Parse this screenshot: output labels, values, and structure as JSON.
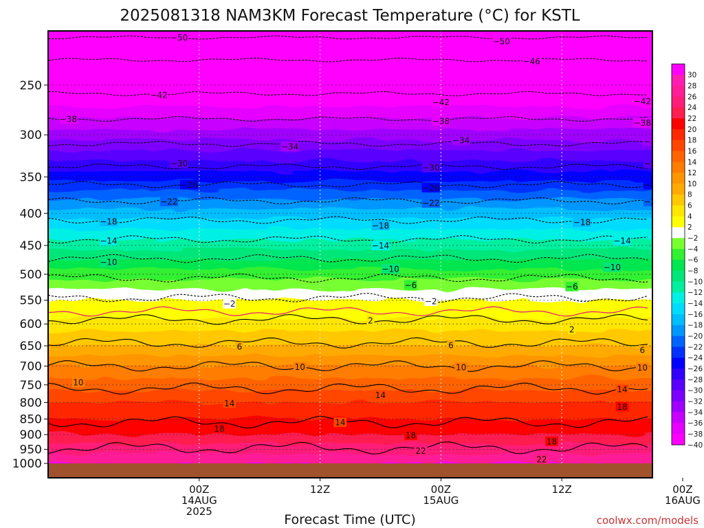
{
  "chart_data": {
    "type": "heatmap",
    "title": "2025081318 NAM3KM Forecast Temperature (°C) for KSTL",
    "xlabel": "Forecast Time (UTC)",
    "ylabel": "",
    "y_axis": {
      "scale": "log-pressure",
      "inverted": true,
      "range_hpa": [
        1000,
        205
      ],
      "ticks": [
        250,
        300,
        350,
        400,
        450,
        500,
        550,
        600,
        650,
        700,
        750,
        800,
        850,
        900,
        950,
        1000
      ]
    },
    "x_axis": {
      "range_hours": [
        -9,
        51
      ],
      "ticks": [
        {
          "hour": 6,
          "lines": [
            "00Z",
            "14AUG",
            "2025"
          ]
        },
        {
          "hour": 18,
          "lines": [
            "12Z"
          ]
        },
        {
          "hour": 30,
          "lines": [
            "00Z",
            "15AUG"
          ]
        },
        {
          "hour": 42,
          "lines": [
            "12Z"
          ]
        },
        {
          "hour": 54,
          "lines": [
            "00Z",
            "16AUG"
          ]
        }
      ]
    },
    "grid": "dotted",
    "colorbar": {
      "placement": "right",
      "levels": [
        -40,
        -38,
        -36,
        -34,
        -32,
        -30,
        -28,
        -26,
        -24,
        -22,
        -20,
        -18,
        -16,
        -14,
        -12,
        -10,
        -8,
        -6,
        -4,
        -2,
        2,
        4,
        6,
        8,
        10,
        12,
        14,
        16,
        18,
        20,
        22,
        24,
        26,
        28,
        30
      ],
      "colors": [
        "#ff00ff",
        "#e600ff",
        "#c800ff",
        "#a000ff",
        "#7d00ff",
        "#5a00ff",
        "#3200ff",
        "#0000ff",
        "#0032ff",
        "#0064ff",
        "#0096ff",
        "#00beff",
        "#00dcff",
        "#00f0e6",
        "#00f0a0",
        "#00e678",
        "#00e650",
        "#32f032",
        "#78ff32",
        "#ffffff",
        "#ffff00",
        "#ffe600",
        "#ffc800",
        "#ffaa00",
        "#ff9600",
        "#ff7d00",
        "#ff6400",
        "#ff4600",
        "#ff2800",
        "#ff0000",
        "#ff1e50",
        "#ff1e78",
        "#ff1e96",
        "#ff1eb4",
        "#ff00ff"
      ]
    },
    "temperature_profile": [
      {
        "p": 205,
        "t": -54
      },
      {
        "p": 250,
        "t": -44
      },
      {
        "p": 300,
        "t": -35
      },
      {
        "p": 350,
        "t": -27
      },
      {
        "p": 400,
        "t": -19
      },
      {
        "p": 450,
        "t": -13
      },
      {
        "p": 500,
        "t": -7
      },
      {
        "p": 550,
        "t": -2
      },
      {
        "p": 570,
        "t": 0
      },
      {
        "p": 600,
        "t": 3
      },
      {
        "p": 650,
        "t": 6
      },
      {
        "p": 700,
        "t": 10
      },
      {
        "p": 750,
        "t": 13
      },
      {
        "p": 800,
        "t": 16
      },
      {
        "p": 850,
        "t": 18
      },
      {
        "p": 900,
        "t": 20
      },
      {
        "p": 950,
        "t": 23
      },
      {
        "p": 1000,
        "t": 26
      }
    ],
    "contours": [
      {
        "value": -50,
        "pressure": 210,
        "style": "dashed"
      },
      {
        "value": -46,
        "pressure": 228,
        "style": "dashed"
      },
      {
        "value": -42,
        "pressure": 258,
        "style": "dashed"
      },
      {
        "value": -38,
        "pressure": 283,
        "style": "dashed"
      },
      {
        "value": -34,
        "pressure": 310,
        "style": "dashed"
      },
      {
        "value": -30,
        "pressure": 337,
        "style": "dashed"
      },
      {
        "value": -26,
        "pressure": 360,
        "style": "dashed"
      },
      {
        "value": -22,
        "pressure": 382,
        "style": "dashed"
      },
      {
        "value": -18,
        "pressure": 410,
        "style": "dashed"
      },
      {
        "value": -14,
        "pressure": 440,
        "style": "dashed"
      },
      {
        "value": -10,
        "pressure": 472,
        "style": "dashed"
      },
      {
        "value": -6,
        "pressure": 507,
        "style": "dashed"
      },
      {
        "value": -2,
        "pressure": 545,
        "style": "dashed"
      },
      {
        "value": 0,
        "pressure": 573,
        "style": "magenta"
      },
      {
        "value": 2,
        "pressure": 590,
        "style": "solid"
      },
      {
        "value": 6,
        "pressure": 643,
        "style": "solid"
      },
      {
        "value": 10,
        "pressure": 700,
        "style": "solid"
      },
      {
        "value": 14,
        "pressure": 760,
        "style": "solid"
      },
      {
        "value": 18,
        "pressure": 860,
        "style": "solid"
      },
      {
        "value": 22,
        "pressure": 945,
        "style": "solid"
      }
    ],
    "contour_labels": [
      {
        "text": "-50",
        "hour": 4,
        "p": 210
      },
      {
        "text": "-50",
        "hour": 36,
        "p": 213
      },
      {
        "text": "-46",
        "hour": 39,
        "p": 229
      },
      {
        "text": "-42",
        "hour": 2,
        "p": 259
      },
      {
        "text": "-42",
        "hour": 30,
        "p": 266
      },
      {
        "text": "-42",
        "hour": 50,
        "p": 265
      },
      {
        "text": "-38",
        "hour": -7,
        "p": 283
      },
      {
        "text": "-38",
        "hour": 30,
        "p": 285
      },
      {
        "text": "-38",
        "hour": 50,
        "p": 287
      },
      {
        "text": "-34",
        "hour": 15,
        "p": 313
      },
      {
        "text": "-34",
        "hour": 32,
        "p": 306
      },
      {
        "text": "-34",
        "hour": 51,
        "p": 307
      },
      {
        "text": "-30",
        "hour": 4,
        "p": 333
      },
      {
        "text": "-30",
        "hour": 29,
        "p": 338
      },
      {
        "text": "-30",
        "hour": 51,
        "p": 333
      },
      {
        "text": "-26",
        "hour": 5,
        "p": 360
      },
      {
        "text": "-26",
        "hour": 29,
        "p": 364
      },
      {
        "text": "-26",
        "hour": 51,
        "p": 360
      },
      {
        "text": "-22",
        "hour": 3,
        "p": 383
      },
      {
        "text": "-22",
        "hour": 29,
        "p": 385
      },
      {
        "text": "-22",
        "hour": 51,
        "p": 383
      },
      {
        "text": "-18",
        "hour": -3,
        "p": 412
      },
      {
        "text": "-18",
        "hour": 24,
        "p": 418
      },
      {
        "text": "-18",
        "hour": 44,
        "p": 413
      },
      {
        "text": "-14",
        "hour": -3,
        "p": 442
      },
      {
        "text": "-14",
        "hour": 24,
        "p": 450
      },
      {
        "text": "-14",
        "hour": 48,
        "p": 442
      },
      {
        "text": "-10",
        "hour": -3,
        "p": 478
      },
      {
        "text": "-10",
        "hour": 25,
        "p": 490
      },
      {
        "text": "-10",
        "hour": 47,
        "p": 487
      },
      {
        "text": "-6",
        "hour": 27,
        "p": 520
      },
      {
        "text": "-6",
        "hour": 43,
        "p": 523
      },
      {
        "text": "-2",
        "hour": 9,
        "p": 557
      },
      {
        "text": "-2",
        "hour": 29,
        "p": 552
      },
      {
        "text": "2",
        "hour": 23,
        "p": 592
      },
      {
        "text": "2",
        "hour": 43,
        "p": 612
      },
      {
        "text": "6",
        "hour": 10,
        "p": 652
      },
      {
        "text": "6",
        "hour": 31,
        "p": 648
      },
      {
        "text": "6",
        "hour": 50,
        "p": 660
      },
      {
        "text": "10",
        "hour": -6,
        "p": 743
      },
      {
        "text": "10",
        "hour": 16,
        "p": 702
      },
      {
        "text": "10",
        "hour": 32,
        "p": 703
      },
      {
        "text": "10",
        "hour": 50,
        "p": 704
      },
      {
        "text": "14",
        "hour": 9,
        "p": 802
      },
      {
        "text": "14",
        "hour": 20,
        "p": 860
      },
      {
        "text": "14",
        "hour": 24,
        "p": 778
      },
      {
        "text": "14",
        "hour": 48,
        "p": 762
      },
      {
        "text": "18",
        "hour": 8,
        "p": 880
      },
      {
        "text": "18",
        "hour": 27,
        "p": 902
      },
      {
        "text": "18",
        "hour": 41,
        "p": 922
      },
      {
        "text": "18",
        "hour": 48,
        "p": 812
      },
      {
        "text": "22",
        "hour": 28,
        "p": 955
      },
      {
        "text": "22",
        "hour": 40,
        "p": 985
      }
    ]
  },
  "credit": "coolwx.com/models"
}
